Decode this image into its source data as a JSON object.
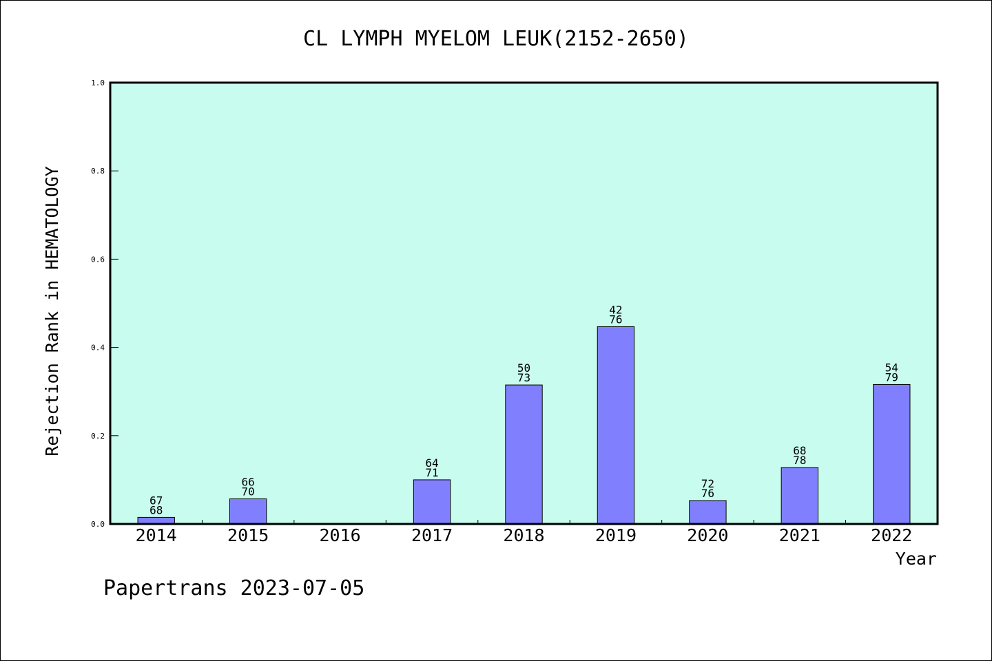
{
  "chart_data": {
    "type": "bar",
    "title": "CL LYMPH MYELOM LEUK(2152-2650)",
    "xlabel": "Year",
    "ylabel": "Rejection Rank in HEMATOLOGY",
    "ylim": [
      0,
      1.0
    ],
    "yticks": [
      "0.0",
      "0.2",
      "0.4",
      "0.6",
      "0.8",
      "1.0"
    ],
    "categories": [
      "2014",
      "2015",
      "2016",
      "2017",
      "2018",
      "2019",
      "2020",
      "2021",
      "2022"
    ],
    "values": [
      0.015,
      0.057,
      0,
      0.1,
      0.315,
      0.447,
      0.053,
      0.128,
      0.316
    ],
    "labels_top": [
      "67",
      "66",
      "",
      "64",
      "50",
      "42",
      "72",
      "68",
      "54"
    ],
    "labels_bottom": [
      "68",
      "70",
      "",
      "71",
      "73",
      "76",
      "76",
      "78",
      "79"
    ],
    "grid": false,
    "legend": "none",
    "colors": {
      "plot_bg": "#c8fcee",
      "bar": "#8080ff",
      "frame": "#000000"
    }
  },
  "footer": {
    "text": "Papertrans 2023-07-05"
  }
}
